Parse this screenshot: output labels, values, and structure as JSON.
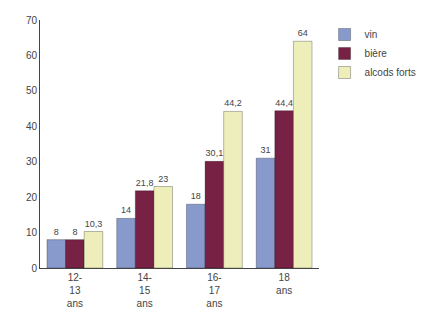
{
  "chart_data": {
    "type": "bar",
    "categories": [
      "12-\n13\nans",
      "14-\n15\nans",
      "16-\n17\nans",
      "18\nans"
    ],
    "series": [
      {
        "name": "vin",
        "color": "#8899cc",
        "values": [
          8,
          14,
          18,
          31
        ],
        "value_labels": [
          "8",
          "14",
          "18",
          "31"
        ]
      },
      {
        "name": "bière",
        "color": "#772244",
        "values": [
          8,
          21.8,
          30.1,
          44.4
        ],
        "value_labels": [
          "8",
          "21,8",
          "30,1",
          "44,4"
        ]
      },
      {
        "name": "alcods forts",
        "color": "#eeeebb",
        "values": [
          10.3,
          23,
          44.2,
          64
        ],
        "value_labels": [
          "10,3",
          "23",
          "44,2",
          "64"
        ]
      }
    ],
    "ylim": [
      0,
      70
    ],
    "yticks": [
      0,
      10,
      20,
      30,
      40,
      50,
      60,
      70
    ],
    "grid": false,
    "legend": "upper right",
    "data_labels": true
  }
}
